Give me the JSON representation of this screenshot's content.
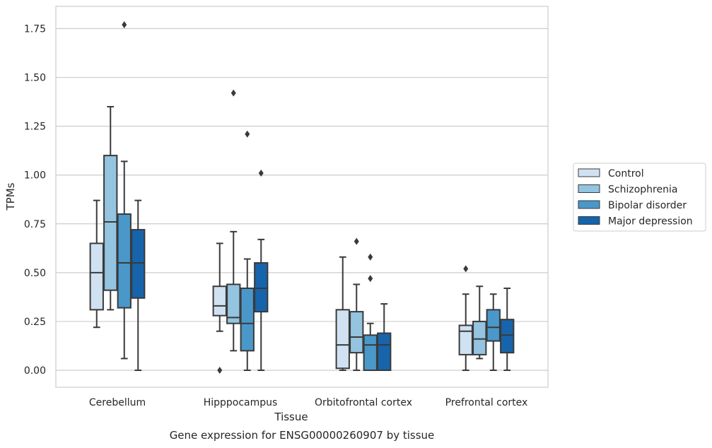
{
  "chart_data": {
    "type": "box",
    "title": "",
    "caption": "Gene expression for ENSG00000260907 by tissue",
    "xlabel": "Tissue",
    "ylabel": "TPMs",
    "ylim": [
      -0.09,
      1.86
    ],
    "yticks": [
      "0.00",
      "0.25",
      "0.50",
      "0.75",
      "1.00",
      "1.25",
      "1.50",
      "1.75"
    ],
    "ytick_values": [
      0,
      0.25,
      0.5,
      0.75,
      1.0,
      1.25,
      1.5,
      1.75
    ],
    "grid": true,
    "legend_position": "right",
    "categories": [
      "Cerebellum",
      "Hipppocampus",
      "Orbitofrontal cortex",
      "Prefrontal cortex"
    ],
    "series": [
      {
        "name": "Control",
        "color": "#d0e1f2",
        "boxes": [
          {
            "whislo": 0.22,
            "q1": 0.31,
            "med": 0.5,
            "q3": 0.65,
            "whishi": 0.87,
            "fliers": []
          },
          {
            "whislo": 0.2,
            "q1": 0.28,
            "med": 0.33,
            "q3": 0.43,
            "whishi": 0.65,
            "fliers": [
              0.0
            ]
          },
          {
            "whislo": 0.0,
            "q1": 0.01,
            "med": 0.13,
            "q3": 0.31,
            "whishi": 0.58,
            "fliers": []
          },
          {
            "whislo": 0.0,
            "q1": 0.08,
            "med": 0.2,
            "q3": 0.23,
            "whishi": 0.39,
            "fliers": [
              0.52
            ]
          }
        ]
      },
      {
        "name": "Schizophrenia",
        "color": "#94c4df",
        "boxes": [
          {
            "whislo": 0.31,
            "q1": 0.41,
            "med": 0.76,
            "q3": 1.1,
            "whishi": 1.35,
            "fliers": []
          },
          {
            "whislo": 0.1,
            "q1": 0.24,
            "med": 0.27,
            "q3": 0.44,
            "whishi": 0.71,
            "fliers": [
              1.42
            ]
          },
          {
            "whislo": 0.0,
            "q1": 0.09,
            "med": 0.17,
            "q3": 0.3,
            "whishi": 0.44,
            "fliers": [
              0.66
            ]
          },
          {
            "whislo": 0.06,
            "q1": 0.08,
            "med": 0.16,
            "q3": 0.25,
            "whishi": 0.43,
            "fliers": []
          }
        ]
      },
      {
        "name": "Bipolar disorder",
        "color": "#4a98c9",
        "boxes": [
          {
            "whislo": 0.06,
            "q1": 0.32,
            "med": 0.55,
            "q3": 0.8,
            "whishi": 1.07,
            "fliers": [
              1.77
            ]
          },
          {
            "whislo": 0.0,
            "q1": 0.1,
            "med": 0.24,
            "q3": 0.42,
            "whishi": 0.57,
            "fliers": [
              1.21
            ]
          },
          {
            "whislo": 0.0,
            "q1": 0.0,
            "med": 0.13,
            "q3": 0.18,
            "whishi": 0.24,
            "fliers": [
              0.47,
              0.58
            ]
          },
          {
            "whislo": 0.0,
            "q1": 0.15,
            "med": 0.22,
            "q3": 0.31,
            "whishi": 0.39,
            "fliers": []
          }
        ]
      },
      {
        "name": "Major depression",
        "color": "#1764ab",
        "boxes": [
          {
            "whislo": 0.0,
            "q1": 0.37,
            "med": 0.55,
            "q3": 0.72,
            "whishi": 0.87,
            "fliers": []
          },
          {
            "whislo": 0.0,
            "q1": 0.3,
            "med": 0.42,
            "q3": 0.55,
            "whishi": 0.67,
            "fliers": [
              1.01
            ]
          },
          {
            "whislo": 0.0,
            "q1": 0.0,
            "med": 0.13,
            "q3": 0.19,
            "whishi": 0.34,
            "fliers": []
          },
          {
            "whislo": 0.0,
            "q1": 0.09,
            "med": 0.18,
            "q3": 0.26,
            "whishi": 0.42,
            "fliers": []
          }
        ]
      }
    ]
  }
}
